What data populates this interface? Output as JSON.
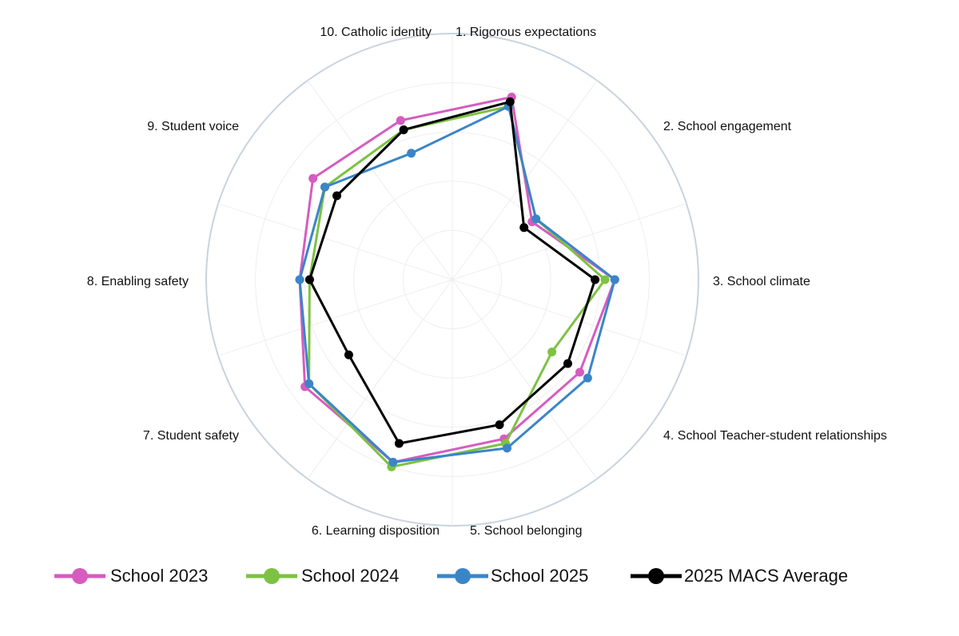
{
  "chart_data": {
    "type": "radar",
    "title": "",
    "axes": [
      "1. Rigorous expectations",
      "2. School engagement",
      "3. School climate",
      "4. School Teacher-student relationships",
      "5. School belonging",
      "6. Learning disposition",
      "7. Student safety",
      "8. Enabling safety",
      "9. Student voice",
      "10. Catholic identity"
    ],
    "rlim": [
      0,
      5
    ],
    "rings": 5,
    "grid": true,
    "legend_position": "bottom",
    "series": [
      {
        "name": "School 2023",
        "color": "#D65CC0",
        "values": [
          3.9,
          2.0,
          3.3,
          3.2,
          3.4,
          3.9,
          3.7,
          3.1,
          3.5,
          3.4
        ]
      },
      {
        "name": "School 2024",
        "color": "#7DC242",
        "values": [
          3.7,
          2.1,
          3.1,
          2.5,
          3.5,
          4.0,
          3.6,
          2.9,
          3.2,
          3.2
        ]
      },
      {
        "name": "School 2025",
        "color": "#3A85C8",
        "values": [
          3.7,
          2.1,
          3.3,
          3.4,
          3.6,
          3.9,
          3.6,
          3.1,
          3.2,
          2.7
        ]
      },
      {
        "name": "2025 MACS Average",
        "color": "#000000",
        "values": [
          3.8,
          1.8,
          2.9,
          2.9,
          3.1,
          3.5,
          2.6,
          2.9,
          2.9,
          3.2
        ]
      }
    ]
  }
}
